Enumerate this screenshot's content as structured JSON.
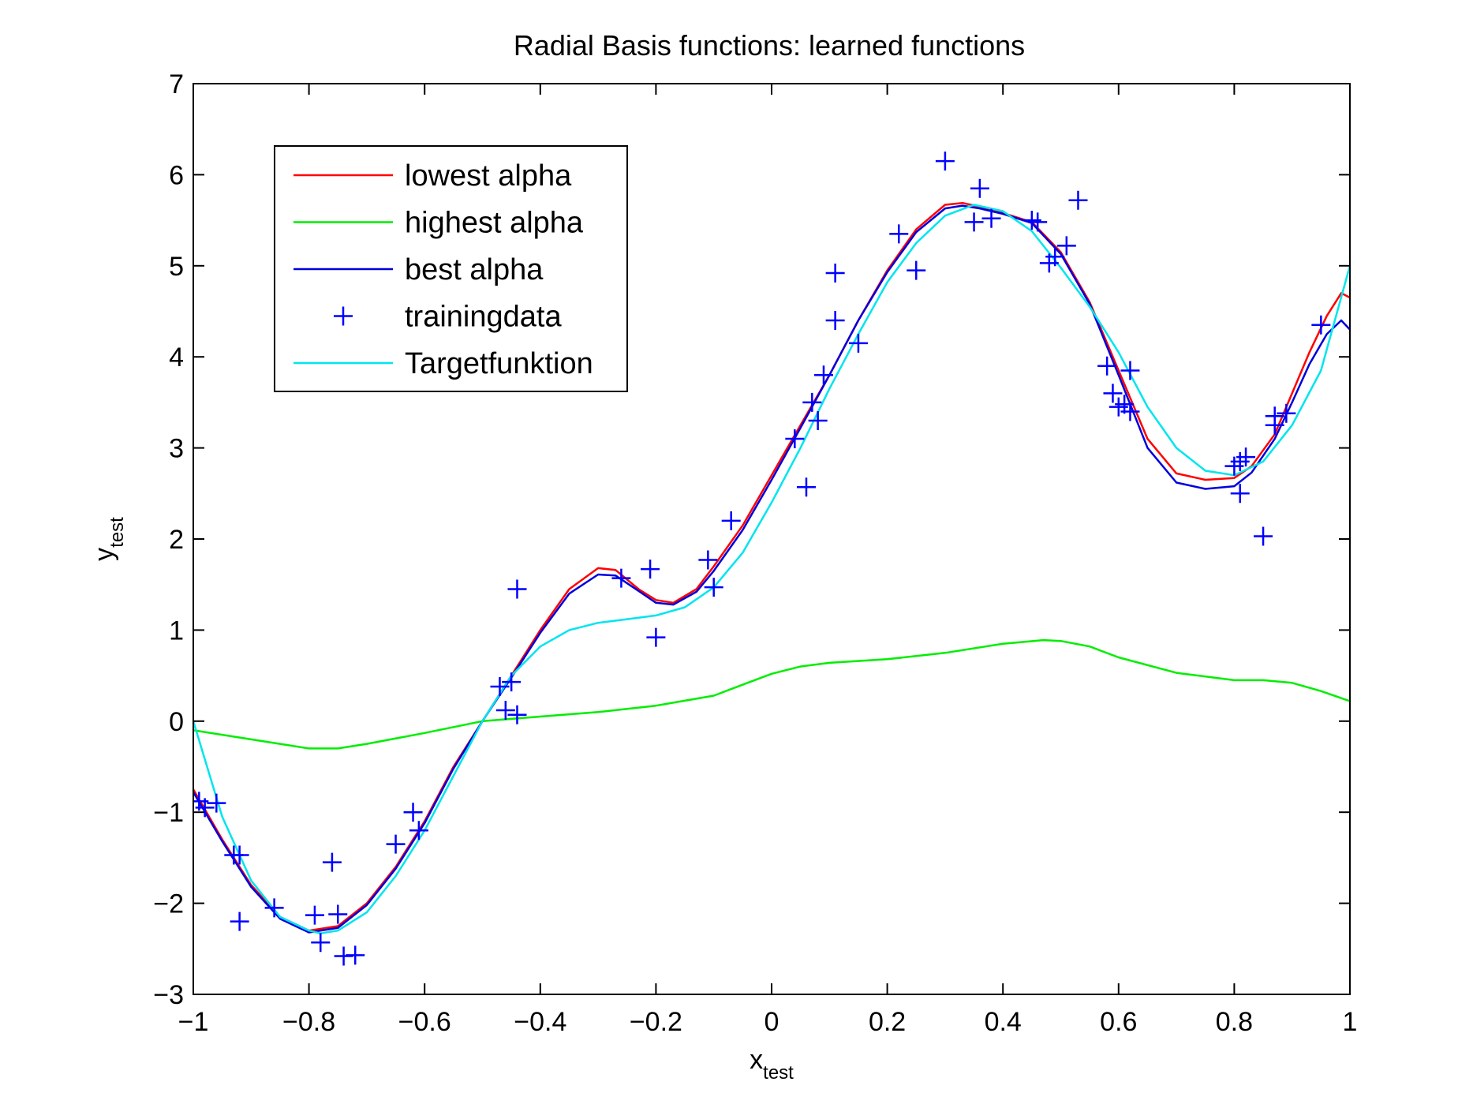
{
  "chart_data": {
    "type": "line",
    "title": "Radial Basis functions: learned functions",
    "xlabel": {
      "main": "x",
      "sub": "test"
    },
    "ylabel": {
      "main": "y",
      "sub": "test"
    },
    "xlim": [
      -1,
      1
    ],
    "ylim": [
      -3,
      7
    ],
    "xticks": [
      -1,
      -0.8,
      -0.6,
      -0.4,
      -0.2,
      0,
      0.2,
      0.4,
      0.6,
      0.8,
      1
    ],
    "xtick_labels": [
      "−1",
      "−0.8",
      "−0.6",
      "−0.4",
      "−0.2",
      "0",
      "0.2",
      "0.4",
      "0.6",
      "0.8",
      "1"
    ],
    "yticks": [
      -3,
      -2,
      -1,
      0,
      1,
      2,
      3,
      4,
      5,
      6,
      7
    ],
    "ytick_labels": [
      "−3",
      "−2",
      "−1",
      "0",
      "1",
      "2",
      "3",
      "4",
      "5",
      "6",
      "7"
    ],
    "grid": false,
    "legend_position": "top-left",
    "series": [
      {
        "name": "lowest alpha",
        "kind": "line",
        "color": "#ff0000",
        "points": [
          [
            -1,
            -0.75
          ],
          [
            -0.95,
            -1.3
          ],
          [
            -0.9,
            -1.8
          ],
          [
            -0.85,
            -2.15
          ],
          [
            -0.8,
            -2.3
          ],
          [
            -0.75,
            -2.25
          ],
          [
            -0.7,
            -2.0
          ],
          [
            -0.65,
            -1.6
          ],
          [
            -0.6,
            -1.1
          ],
          [
            -0.55,
            -0.5
          ],
          [
            -0.5,
            0.0
          ],
          [
            -0.45,
            0.5
          ],
          [
            -0.4,
            1.0
          ],
          [
            -0.35,
            1.45
          ],
          [
            -0.3,
            1.68
          ],
          [
            -0.27,
            1.66
          ],
          [
            -0.23,
            1.45
          ],
          [
            -0.2,
            1.33
          ],
          [
            -0.17,
            1.3
          ],
          [
            -0.13,
            1.45
          ],
          [
            -0.1,
            1.7
          ],
          [
            -0.05,
            2.15
          ],
          [
            0,
            2.7
          ],
          [
            0.05,
            3.25
          ],
          [
            0.1,
            3.8
          ],
          [
            0.15,
            4.4
          ],
          [
            0.2,
            4.95
          ],
          [
            0.25,
            5.4
          ],
          [
            0.3,
            5.67
          ],
          [
            0.33,
            5.69
          ],
          [
            0.36,
            5.65
          ],
          [
            0.4,
            5.58
          ],
          [
            0.45,
            5.48
          ],
          [
            0.5,
            5.15
          ],
          [
            0.55,
            4.6
          ],
          [
            0.6,
            3.85
          ],
          [
            0.65,
            3.1
          ],
          [
            0.7,
            2.72
          ],
          [
            0.75,
            2.65
          ],
          [
            0.8,
            2.67
          ],
          [
            0.83,
            2.8
          ],
          [
            0.87,
            3.15
          ],
          [
            0.9,
            3.6
          ],
          [
            0.93,
            4.05
          ],
          [
            0.96,
            4.45
          ],
          [
            0.985,
            4.7
          ],
          [
            1,
            4.65
          ]
        ]
      },
      {
        "name": "highest alpha",
        "kind": "line",
        "color": "#00ee00",
        "points": [
          [
            -1,
            -0.1
          ],
          [
            -0.9,
            -0.2
          ],
          [
            -0.8,
            -0.3
          ],
          [
            -0.75,
            -0.3
          ],
          [
            -0.7,
            -0.25
          ],
          [
            -0.6,
            -0.13
          ],
          [
            -0.5,
            0.0
          ],
          [
            -0.4,
            0.05
          ],
          [
            -0.3,
            0.1
          ],
          [
            -0.2,
            0.17
          ],
          [
            -0.1,
            0.28
          ],
          [
            -0.05,
            0.4
          ],
          [
            0,
            0.52
          ],
          [
            0.05,
            0.6
          ],
          [
            0.1,
            0.64
          ],
          [
            0.2,
            0.68
          ],
          [
            0.3,
            0.75
          ],
          [
            0.4,
            0.85
          ],
          [
            0.47,
            0.89
          ],
          [
            0.5,
            0.88
          ],
          [
            0.55,
            0.82
          ],
          [
            0.6,
            0.7
          ],
          [
            0.7,
            0.53
          ],
          [
            0.8,
            0.45
          ],
          [
            0.85,
            0.45
          ],
          [
            0.9,
            0.42
          ],
          [
            0.95,
            0.33
          ],
          [
            1,
            0.22
          ]
        ]
      },
      {
        "name": "best alpha",
        "kind": "line",
        "color": "#0000dd",
        "points": [
          [
            -1,
            -0.78
          ],
          [
            -0.95,
            -1.32
          ],
          [
            -0.9,
            -1.82
          ],
          [
            -0.85,
            -2.17
          ],
          [
            -0.8,
            -2.32
          ],
          [
            -0.75,
            -2.27
          ],
          [
            -0.7,
            -2.02
          ],
          [
            -0.65,
            -1.62
          ],
          [
            -0.6,
            -1.12
          ],
          [
            -0.55,
            -0.52
          ],
          [
            -0.5,
            0.0
          ],
          [
            -0.45,
            0.48
          ],
          [
            -0.4,
            0.97
          ],
          [
            -0.35,
            1.4
          ],
          [
            -0.3,
            1.61
          ],
          [
            -0.27,
            1.6
          ],
          [
            -0.23,
            1.43
          ],
          [
            -0.2,
            1.3
          ],
          [
            -0.17,
            1.28
          ],
          [
            -0.13,
            1.42
          ],
          [
            -0.1,
            1.65
          ],
          [
            -0.05,
            2.1
          ],
          [
            0,
            2.65
          ],
          [
            0.05,
            3.22
          ],
          [
            0.1,
            3.8
          ],
          [
            0.15,
            4.4
          ],
          [
            0.2,
            4.93
          ],
          [
            0.25,
            5.37
          ],
          [
            0.3,
            5.63
          ],
          [
            0.33,
            5.66
          ],
          [
            0.36,
            5.63
          ],
          [
            0.4,
            5.57
          ],
          [
            0.45,
            5.47
          ],
          [
            0.5,
            5.13
          ],
          [
            0.55,
            4.58
          ],
          [
            0.6,
            3.8
          ],
          [
            0.65,
            3.0
          ],
          [
            0.7,
            2.62
          ],
          [
            0.75,
            2.55
          ],
          [
            0.8,
            2.58
          ],
          [
            0.83,
            2.73
          ],
          [
            0.87,
            3.1
          ],
          [
            0.9,
            3.5
          ],
          [
            0.93,
            3.92
          ],
          [
            0.96,
            4.25
          ],
          [
            0.985,
            4.4
          ],
          [
            1,
            4.3
          ]
        ]
      },
      {
        "name": "trainingdata",
        "kind": "scatter",
        "marker": "+",
        "color": "#0000ff",
        "points": [
          [
            -0.99,
            -0.88
          ],
          [
            -0.98,
            -0.95
          ],
          [
            -0.96,
            -0.9
          ],
          [
            -0.93,
            -1.47
          ],
          [
            -0.92,
            -1.47
          ],
          [
            -0.92,
            -2.2
          ],
          [
            -0.86,
            -2.05
          ],
          [
            -0.79,
            -2.13
          ],
          [
            -0.78,
            -2.43
          ],
          [
            -0.76,
            -1.55
          ],
          [
            -0.75,
            -2.12
          ],
          [
            -0.74,
            -2.58
          ],
          [
            -0.72,
            -2.57
          ],
          [
            -0.65,
            -1.35
          ],
          [
            -0.62,
            -1.0
          ],
          [
            -0.61,
            -1.2
          ],
          [
            -0.47,
            0.38
          ],
          [
            -0.46,
            0.12
          ],
          [
            -0.45,
            0.43
          ],
          [
            -0.44,
            0.07
          ],
          [
            -0.44,
            1.45
          ],
          [
            -0.26,
            1.57
          ],
          [
            -0.21,
            1.67
          ],
          [
            -0.2,
            0.92
          ],
          [
            -0.11,
            1.77
          ],
          [
            -0.1,
            1.47
          ],
          [
            -0.07,
            2.2
          ],
          [
            0.04,
            3.1
          ],
          [
            0.06,
            2.57
          ],
          [
            0.07,
            3.5
          ],
          [
            0.08,
            3.3
          ],
          [
            0.09,
            3.8
          ],
          [
            0.11,
            4.4
          ],
          [
            0.11,
            4.92
          ],
          [
            0.15,
            4.15
          ],
          [
            0.22,
            5.35
          ],
          [
            0.25,
            4.95
          ],
          [
            0.3,
            6.15
          ],
          [
            0.35,
            5.48
          ],
          [
            0.36,
            5.85
          ],
          [
            0.38,
            5.52
          ],
          [
            0.45,
            5.5
          ],
          [
            0.46,
            5.48
          ],
          [
            0.48,
            5.03
          ],
          [
            0.49,
            5.1
          ],
          [
            0.51,
            5.22
          ],
          [
            0.53,
            5.72
          ],
          [
            0.58,
            3.9
          ],
          [
            0.59,
            3.6
          ],
          [
            0.6,
            3.45
          ],
          [
            0.61,
            3.48
          ],
          [
            0.62,
            3.85
          ],
          [
            0.62,
            3.4
          ],
          [
            0.8,
            2.8
          ],
          [
            0.81,
            2.5
          ],
          [
            0.81,
            2.85
          ],
          [
            0.82,
            2.9
          ],
          [
            0.85,
            2.03
          ],
          [
            0.87,
            3.35
          ],
          [
            0.87,
            3.25
          ],
          [
            0.89,
            3.38
          ],
          [
            0.95,
            4.35
          ]
        ]
      },
      {
        "name": "Targetfunktion",
        "kind": "line",
        "color": "#00e5ee",
        "points": [
          [
            -1,
            0.0
          ],
          [
            -0.95,
            -1.05
          ],
          [
            -0.9,
            -1.75
          ],
          [
            -0.85,
            -2.15
          ],
          [
            -0.8,
            -2.3
          ],
          [
            -0.78,
            -2.33
          ],
          [
            -0.75,
            -2.3
          ],
          [
            -0.7,
            -2.1
          ],
          [
            -0.65,
            -1.7
          ],
          [
            -0.6,
            -1.2
          ],
          [
            -0.55,
            -0.6
          ],
          [
            -0.5,
            0.0
          ],
          [
            -0.45,
            0.5
          ],
          [
            -0.4,
            0.82
          ],
          [
            -0.35,
            1.0
          ],
          [
            -0.3,
            1.08
          ],
          [
            -0.25,
            1.12
          ],
          [
            -0.2,
            1.16
          ],
          [
            -0.15,
            1.25
          ],
          [
            -0.1,
            1.47
          ],
          [
            -0.05,
            1.85
          ],
          [
            0,
            2.4
          ],
          [
            0.05,
            3.0
          ],
          [
            0.1,
            3.65
          ],
          [
            0.15,
            4.25
          ],
          [
            0.2,
            4.82
          ],
          [
            0.25,
            5.25
          ],
          [
            0.3,
            5.55
          ],
          [
            0.35,
            5.67
          ],
          [
            0.4,
            5.6
          ],
          [
            0.45,
            5.38
          ],
          [
            0.5,
            4.98
          ],
          [
            0.55,
            4.55
          ],
          [
            0.6,
            4.05
          ],
          [
            0.65,
            3.45
          ],
          [
            0.7,
            3.0
          ],
          [
            0.75,
            2.75
          ],
          [
            0.8,
            2.7
          ],
          [
            0.85,
            2.85
          ],
          [
            0.9,
            3.25
          ],
          [
            0.95,
            3.85
          ],
          [
            1,
            5.0
          ]
        ]
      }
    ]
  }
}
